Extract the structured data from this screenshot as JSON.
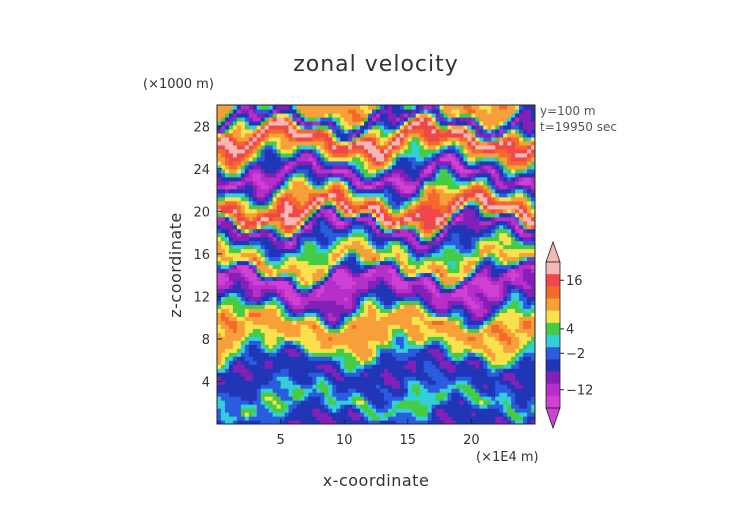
{
  "chart_data": {
    "type": "heatmap",
    "title": "zonal velocity",
    "xlabel": "x-coordinate",
    "ylabel": "z-coordinate",
    "x_unit": "(×1E4 m)",
    "y_unit": "(×1000 m)",
    "annotations": [
      "y=100 m",
      "t=19950 sec"
    ],
    "xlim": [
      0,
      25
    ],
    "ylim": [
      0,
      30
    ],
    "x_ticks": [
      "5",
      "10",
      "15",
      "20"
    ],
    "y_ticks": [
      "4",
      "8",
      "12",
      "16",
      "20",
      "24",
      "28"
    ],
    "colorbar": {
      "labels": [
        "16",
        "4",
        "−2",
        "−12"
      ],
      "extend": "both",
      "colors": [
        "#f7b7b7",
        "#f04848",
        "#f46a2a",
        "#f7a03a",
        "#fbe14c",
        "#44cc44",
        "#33cfd8",
        "#2b5ce0",
        "#2036b6",
        "#8420b8",
        "#b52fc8",
        "#d040d4"
      ]
    },
    "bands": [
      {
        "z": 0.5,
        "u": -8
      },
      {
        "z": 2.0,
        "u": 1
      },
      {
        "z": 3.5,
        "u": -5
      },
      {
        "z": 5.5,
        "u": -9
      },
      {
        "z": 7.5,
        "u": 5
      },
      {
        "z": 9.5,
        "u": 9
      },
      {
        "z": 11.5,
        "u": -10
      },
      {
        "z": 13.5,
        "u": -16
      },
      {
        "z": 15.0,
        "u": 8
      },
      {
        "z": 16.5,
        "u": 1
      },
      {
        "z": 18.5,
        "u": -14
      },
      {
        "z": 20.0,
        "u": 20
      },
      {
        "z": 21.5,
        "u": 5
      },
      {
        "z": 23.5,
        "u": -16
      },
      {
        "z": 25.5,
        "u": 6
      },
      {
        "z": 27.0,
        "u": 21
      },
      {
        "z": 28.5,
        "u": -13
      },
      {
        "z": 29.7,
        "u": 8
      }
    ]
  }
}
